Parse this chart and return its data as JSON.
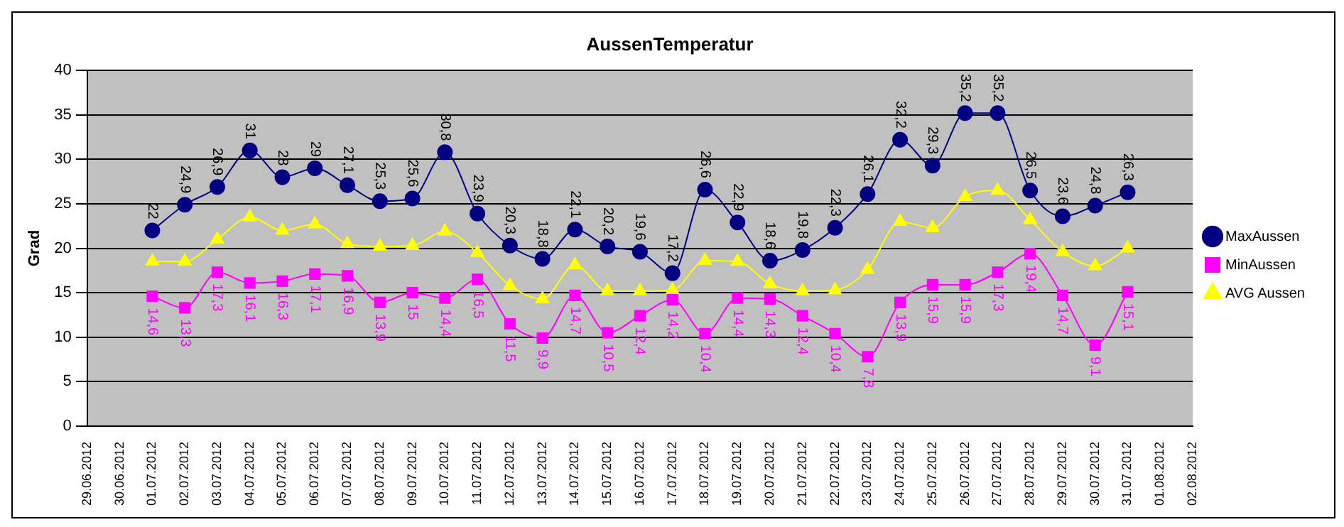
{
  "chart_data": {
    "type": "line",
    "title": "AussenTemperatur",
    "ylabel": "Grad",
    "categories": [
      "29.06.2012",
      "30.06.2012",
      "01.07.2012",
      "02.07.2012",
      "03.07.2012",
      "04.07.2012",
      "05.07.2012",
      "06.07.2012",
      "07.07.2012",
      "08.07.2012",
      "09.07.2012",
      "10.07.2012",
      "11.07.2012",
      "12.07.2012",
      "13.07.2012",
      "14.07.2012",
      "15.07.2012",
      "16.07.2012",
      "17.07.2012",
      "18.07.2012",
      "19.07.2012",
      "20.07.2012",
      "21.07.2012",
      "22.07.2012",
      "23.07.2012",
      "24.07.2012",
      "25.07.2012",
      "26.07.2012",
      "27.07.2012",
      "28.07.2012",
      "29.07.2012",
      "30.07.2012",
      "31.07.2012",
      "01.08.2012",
      "02.08.2012"
    ],
    "series": [
      {
        "name": "MaxAussen",
        "color": "#000080",
        "marker": "circle",
        "values": [
          null,
          null,
          22,
          24.9,
          26.9,
          31,
          28,
          29,
          27.1,
          25.3,
          25.6,
          30.8,
          23.9,
          20.3,
          18.8,
          22.1,
          20.2,
          19.6,
          17.2,
          26.6,
          22.9,
          18.6,
          19.8,
          22.3,
          26.1,
          32.2,
          29.3,
          35.2,
          35.2,
          26.5,
          23.6,
          24.8,
          26.3,
          null,
          null
        ],
        "value_labels": [
          null,
          null,
          "22",
          "24,9",
          "26,9",
          "31",
          "28",
          "29",
          "27,1",
          "25,3",
          "25,6",
          "30,8",
          "23,9",
          "20,3",
          "18,8",
          "22,1",
          "20,2",
          "19,6",
          "17,2",
          "26,6",
          "22,9",
          "18,6",
          "19,8",
          "22,3",
          "26,1",
          "32,2",
          "29,3",
          "35,2",
          "35,2",
          "26,5",
          "23,6",
          "24,8",
          "26,3",
          null,
          null
        ]
      },
      {
        "name": "MinAussen",
        "color": "#ff00ff",
        "marker": "square",
        "values": [
          null,
          null,
          14.6,
          13.3,
          17.3,
          16.1,
          16.3,
          17.1,
          16.9,
          13.9,
          15,
          14.4,
          16.5,
          11.5,
          9.9,
          14.7,
          10.5,
          12.4,
          14.2,
          10.4,
          14.4,
          14.3,
          12.4,
          10.4,
          7.8,
          13.9,
          15.9,
          15.9,
          17.3,
          19.4,
          14.7,
          9.1,
          15.1,
          null,
          null
        ],
        "value_labels": [
          null,
          null,
          "14,6",
          "13,3",
          "17,3",
          "16,1",
          "16,3",
          "17,1",
          "16,9",
          "13,9",
          "15",
          "14,4",
          "16,5",
          "11,5",
          "9,9",
          "14,7",
          "10,5",
          "12,4",
          "14,2",
          "10,4",
          "14,4",
          "14,3",
          "12,4",
          "10,4",
          "7,8",
          "13,9",
          "15,9",
          "15,9",
          "17,3",
          "19,4",
          "14,7",
          "9,1",
          "15,1",
          null,
          null
        ]
      },
      {
        "name": "AVG Aussen",
        "color": "#ffff00",
        "marker": "triangle",
        "values": [
          null,
          null,
          18.5,
          18.5,
          21,
          23.5,
          22,
          22.7,
          20.5,
          20.2,
          20.3,
          21.9,
          19.5,
          15.8,
          14.3,
          18.1,
          15.2,
          15.2,
          15.3,
          18.6,
          18.5,
          16,
          15.2,
          15.3,
          17.6,
          23,
          22.3,
          25.8,
          26.5,
          23.2,
          19.6,
          18,
          20,
          null,
          null
        ]
      }
    ],
    "ylim": [
      0,
      40
    ],
    "yticks": [
      0,
      5,
      10,
      15,
      20,
      25,
      30,
      35,
      40
    ],
    "grid": "y",
    "legend": "right"
  }
}
